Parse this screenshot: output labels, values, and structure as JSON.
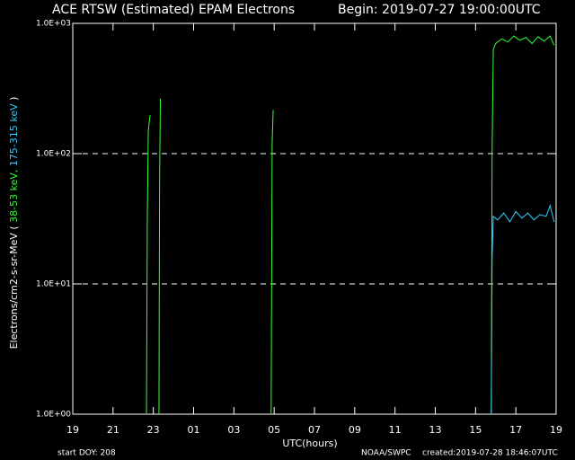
{
  "chart_data": {
    "type": "line",
    "title": "ACE RTSW (Estimated) EPAM Electrons",
    "subtitle": "Begin: 2019-07-27 19:00:00UTC",
    "xlabel": "UTC(hours)",
    "ylabel_prefix": "Electrons/cm2-s-sr-MeV (",
    "ylabel_suffix": ")",
    "footer_left": "start DOY: 208",
    "footer_center": "NOAA/SWPC",
    "footer_right": "created:2019-07-28 18:46:07UTC",
    "yscale": "log",
    "grid": true,
    "xlim": [
      0,
      24
    ],
    "xticks": [
      {
        "value": 0,
        "label": "19"
      },
      {
        "value": 2,
        "label": "21"
      },
      {
        "value": 4,
        "label": "23"
      },
      {
        "value": 6,
        "label": "01"
      },
      {
        "value": 8,
        "label": "03"
      },
      {
        "value": 10,
        "label": "05"
      },
      {
        "value": 12,
        "label": "07"
      },
      {
        "value": 14,
        "label": "09"
      },
      {
        "value": 16,
        "label": "11"
      },
      {
        "value": 18,
        "label": "13"
      },
      {
        "value": 20,
        "label": "15"
      },
      {
        "value": 22,
        "label": "17"
      },
      {
        "value": 24,
        "label": "19"
      }
    ],
    "ylim": [
      1,
      1000
    ],
    "yticks": [
      {
        "value": 1,
        "label": "1.0E+00"
      },
      {
        "value": 10,
        "label": "1.0E+01"
      },
      {
        "value": 100,
        "label": "1.0E+02"
      },
      {
        "value": 1000,
        "label": "1.0E+03"
      }
    ],
    "series": [
      {
        "name": "38-53 keV,",
        "color": "#33ff33",
        "x": [
          3.66,
          3.7,
          3.75,
          3.84,
          3.9,
          4.28,
          4.31,
          4.35,
          4.4,
          9.85,
          9.9,
          9.95,
          10.0,
          20.78,
          20.82,
          20.88,
          21.0,
          21.3,
          21.6,
          21.9,
          22.2,
          22.5,
          22.8,
          23.1,
          23.4,
          23.7,
          23.9
        ],
        "values": [
          1,
          30,
          150,
          198,
          null,
          1,
          60,
          265,
          null,
          1,
          120,
          217,
          null,
          1,
          100,
          630,
          700,
          760,
          720,
          800,
          740,
          780,
          700,
          790,
          730,
          800,
          680
        ]
      },
      {
        "name": "175-315 keV",
        "color": "#33ccff",
        "x": [
          20.78,
          20.82,
          20.88,
          21.1,
          21.4,
          21.7,
          22.0,
          22.3,
          22.6,
          22.9,
          23.2,
          23.5,
          23.7,
          23.9
        ],
        "values": [
          1,
          15,
          33,
          31,
          35,
          30,
          36,
          32,
          35,
          31,
          34,
          33,
          40,
          30
        ]
      }
    ]
  }
}
